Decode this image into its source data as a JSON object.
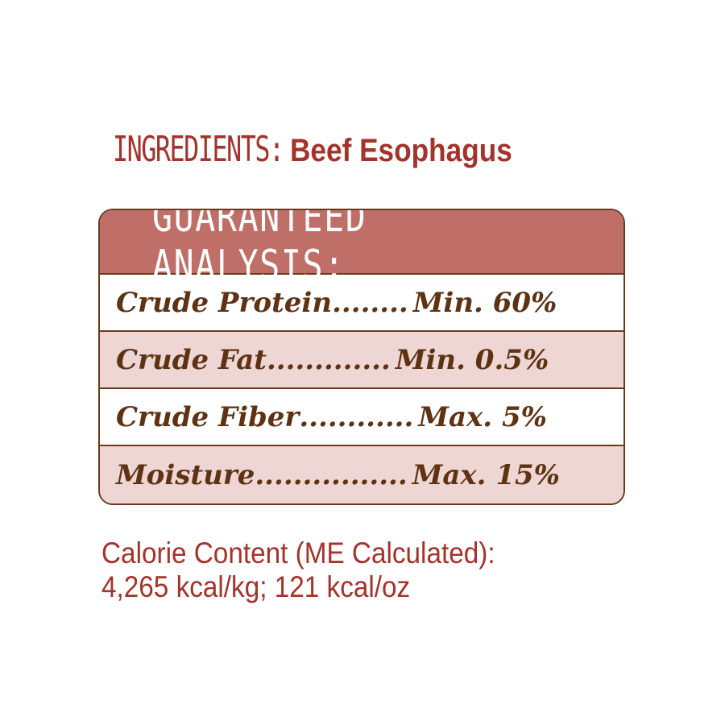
{
  "ingredients": {
    "label": "INGREDIENTS:",
    "value": "Beef Esophagus"
  },
  "analysis": {
    "title": "GUARANTEED ANALYSIS:",
    "rows": [
      {
        "name": "Crude Protein",
        "dots": "........",
        "value": "Min. 60%"
      },
      {
        "name": "Crude Fat",
        "dots": " .............",
        "value": "Min. 0.5%"
      },
      {
        "name": "Crude Fiber",
        "dots": "............",
        "value": "Max. 5%"
      },
      {
        "name": "Moisture",
        "dots": " ................",
        "value": "Max. 15%"
      }
    ]
  },
  "calorie": {
    "line1": "Calorie Content (ME Calculated):",
    "line2": "4,265 kcal/kg; 121 kcal/oz"
  },
  "colors": {
    "header": "#bf6e68",
    "border": "#6b3a1e",
    "row_alt": "#edd6d3",
    "text_brown": "#5e3213",
    "text_red": "#a4332b"
  }
}
